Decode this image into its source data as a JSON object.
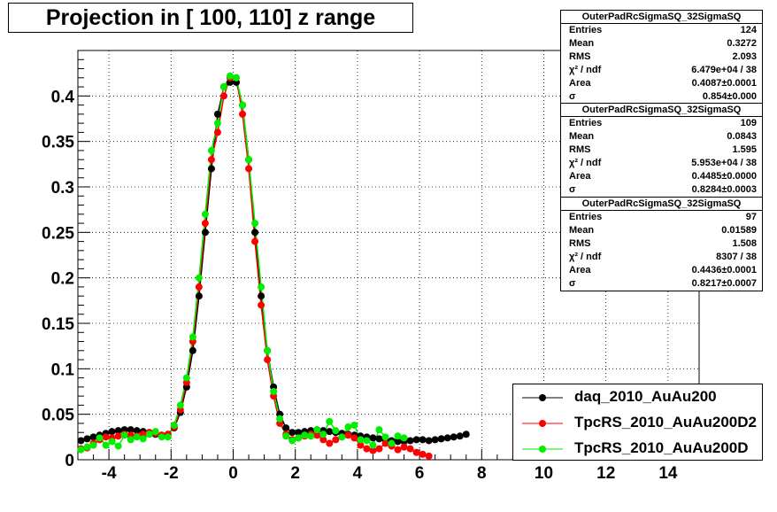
{
  "title": "Projection in [ 100, 110] z range",
  "chart_data": {
    "type": "scatter",
    "xlim": [
      -5,
      15
    ],
    "ylim": [
      0,
      0.45
    ],
    "x_ticks": [
      -4,
      -2,
      0,
      2,
      4,
      6,
      8,
      10,
      12,
      14
    ],
    "x_tick_labels": [
      "-4",
      "-2",
      "0",
      "2",
      "4",
      "6",
      "8",
      "10",
      "12",
      "14"
    ],
    "y_ticks": [
      0,
      0.05,
      0.1,
      0.15,
      0.2,
      0.25,
      0.3,
      0.35,
      0.4
    ],
    "y_tick_labels": [
      "0",
      "0.05",
      "0.1",
      "0.15",
      "0.2",
      "0.25",
      "0.3",
      "0.35",
      "0.4"
    ],
    "grid": true,
    "legend_position": "bottom-right",
    "series": [
      {
        "name": "daq_2010_AuAu200",
        "color": "#000000",
        "x": [
          -4.9,
          -4.7,
          -4.5,
          -4.3,
          -4.1,
          -3.9,
          -3.7,
          -3.5,
          -3.3,
          -3.1,
          -2.9,
          -2.7,
          -2.5,
          -2.3,
          -2.1,
          -1.9,
          -1.7,
          -1.5,
          -1.3,
          -1.1,
          -0.9,
          -0.7,
          -0.5,
          -0.3,
          -0.1,
          0.1,
          0.3,
          0.5,
          0.7,
          0.9,
          1.1,
          1.3,
          1.5,
          1.7,
          1.9,
          2.1,
          2.3,
          2.5,
          2.7,
          2.9,
          3.1,
          3.3,
          3.5,
          3.7,
          3.9,
          4.1,
          4.3,
          4.5,
          4.7,
          4.9,
          5.1,
          5.3,
          5.5,
          5.7,
          5.9,
          6.1,
          6.3,
          6.5,
          6.7,
          6.9,
          7.1,
          7.3,
          7.5
        ],
        "y": [
          0.021,
          0.023,
          0.025,
          0.027,
          0.029,
          0.031,
          0.032,
          0.033,
          0.033,
          0.032,
          0.031,
          0.03,
          0.028,
          0.027,
          0.028,
          0.035,
          0.052,
          0.08,
          0.12,
          0.18,
          0.25,
          0.32,
          0.38,
          0.41,
          0.415,
          0.415,
          0.39,
          0.33,
          0.25,
          0.18,
          0.12,
          0.08,
          0.05,
          0.035,
          0.03,
          0.03,
          0.031,
          0.032,
          0.033,
          0.032,
          0.031,
          0.03,
          0.029,
          0.028,
          0.027,
          0.026,
          0.025,
          0.024,
          0.023,
          0.022,
          0.021,
          0.02,
          0.02,
          0.021,
          0.022,
          0.022,
          0.021,
          0.022,
          0.023,
          0.024,
          0.025,
          0.026,
          0.028
        ]
      },
      {
        "name": "TpcRS_2010_AuAu200D2",
        "color": "#ff0000",
        "x": [
          -4.9,
          -4.7,
          -4.5,
          -4.3,
          -4.1,
          -3.9,
          -3.7,
          -3.5,
          -3.3,
          -3.1,
          -2.9,
          -2.7,
          -2.5,
          -2.3,
          -2.1,
          -1.9,
          -1.7,
          -1.5,
          -1.3,
          -1.1,
          -0.9,
          -0.7,
          -0.5,
          -0.3,
          -0.1,
          0.1,
          0.3,
          0.5,
          0.7,
          0.9,
          1.1,
          1.3,
          1.5,
          1.7,
          1.9,
          2.1,
          2.3,
          2.5,
          2.7,
          2.9,
          3.1,
          3.3,
          3.5,
          3.7,
          3.9,
          4.1,
          4.3,
          4.5,
          4.7,
          4.9,
          5.1,
          5.3,
          5.5,
          5.7,
          5.9,
          6.1,
          6.3
        ],
        "y": [
          0.012,
          0.013,
          0.018,
          0.022,
          0.025,
          0.024,
          0.026,
          0.028,
          0.027,
          0.026,
          0.028,
          0.03,
          0.029,
          0.027,
          0.028,
          0.036,
          0.055,
          0.085,
          0.13,
          0.19,
          0.26,
          0.33,
          0.36,
          0.4,
          0.42,
          0.42,
          0.38,
          0.32,
          0.24,
          0.17,
          0.11,
          0.07,
          0.04,
          0.028,
          0.022,
          0.024,
          0.026,
          0.028,
          0.027,
          0.022,
          0.018,
          0.022,
          0.025,
          0.027,
          0.024,
          0.016,
          0.012,
          0.01,
          0.012,
          0.018,
          0.015,
          0.011,
          0.014,
          0.012,
          0.008,
          0.006,
          0.004
        ]
      },
      {
        "name": "TpcRS_2010_AuAu200D",
        "color": "#00ee00",
        "x": [
          -4.9,
          -4.7,
          -4.5,
          -4.3,
          -4.1,
          -3.9,
          -3.7,
          -3.5,
          -3.3,
          -3.1,
          -2.9,
          -2.7,
          -2.5,
          -2.3,
          -2.1,
          -1.9,
          -1.7,
          -1.5,
          -1.3,
          -1.1,
          -0.9,
          -0.7,
          -0.5,
          -0.3,
          -0.1,
          0.1,
          0.3,
          0.5,
          0.7,
          0.9,
          1.1,
          1.3,
          1.5,
          1.7,
          1.9,
          2.1,
          2.3,
          2.5,
          2.7,
          2.9,
          3.1,
          3.3,
          3.5,
          3.7,
          3.9,
          4.1,
          4.3,
          4.5,
          4.7,
          4.9,
          5.1,
          5.3,
          5.5
        ],
        "y": [
          0.011,
          0.014,
          0.016,
          0.024,
          0.016,
          0.02,
          0.015,
          0.027,
          0.022,
          0.025,
          0.023,
          0.028,
          0.031,
          0.025,
          0.025,
          0.038,
          0.06,
          0.09,
          0.135,
          0.2,
          0.27,
          0.34,
          0.37,
          0.41,
          0.422,
          0.42,
          0.39,
          0.33,
          0.26,
          0.19,
          0.12,
          0.075,
          0.045,
          0.026,
          0.021,
          0.024,
          0.027,
          0.026,
          0.033,
          0.028,
          0.042,
          0.032,
          0.025,
          0.036,
          0.038,
          0.022,
          0.021,
          0.016,
          0.033,
          0.025,
          0.018,
          0.026,
          0.024
        ]
      }
    ]
  },
  "stats": [
    {
      "header": "OuterPadRcSigmaSQ_32SigmaSQ",
      "rows": [
        {
          "k": "Entries",
          "v": "124"
        },
        {
          "k": "Mean",
          "v": "0.3272"
        },
        {
          "k": "RMS",
          "v": "2.093"
        },
        {
          "k": "χ² / ndf",
          "v": "6.479e+04 / 38"
        },
        {
          "k": "Area",
          "v": "0.4087±0.0001"
        },
        {
          "k": "σ",
          "v": "0.854±0.000"
        }
      ]
    },
    {
      "header": "OuterPadRcSigmaSQ_32SigmaSQ",
      "rows": [
        {
          "k": "Entries",
          "v": "109"
        },
        {
          "k": "Mean",
          "v": "0.0843"
        },
        {
          "k": "RMS",
          "v": "1.595"
        },
        {
          "k": "χ² / ndf",
          "v": "5.953e+04 / 38"
        },
        {
          "k": "Area",
          "v": "0.4485±0.0000"
        },
        {
          "k": "σ",
          "v": "0.8284±0.0003"
        }
      ]
    },
    {
      "header": "OuterPadRcSigmaSQ_32SigmaSQ",
      "rows": [
        {
          "k": "Entries",
          "v": "97"
        },
        {
          "k": "Mean",
          "v": "0.01589"
        },
        {
          "k": "RMS",
          "v": "1.508"
        },
        {
          "k": "χ² / ndf",
          "v": "8307 / 38"
        },
        {
          "k": "Area",
          "v": "0.4436±0.0001"
        },
        {
          "k": "σ",
          "v": "0.8217±0.0007"
        }
      ]
    }
  ]
}
